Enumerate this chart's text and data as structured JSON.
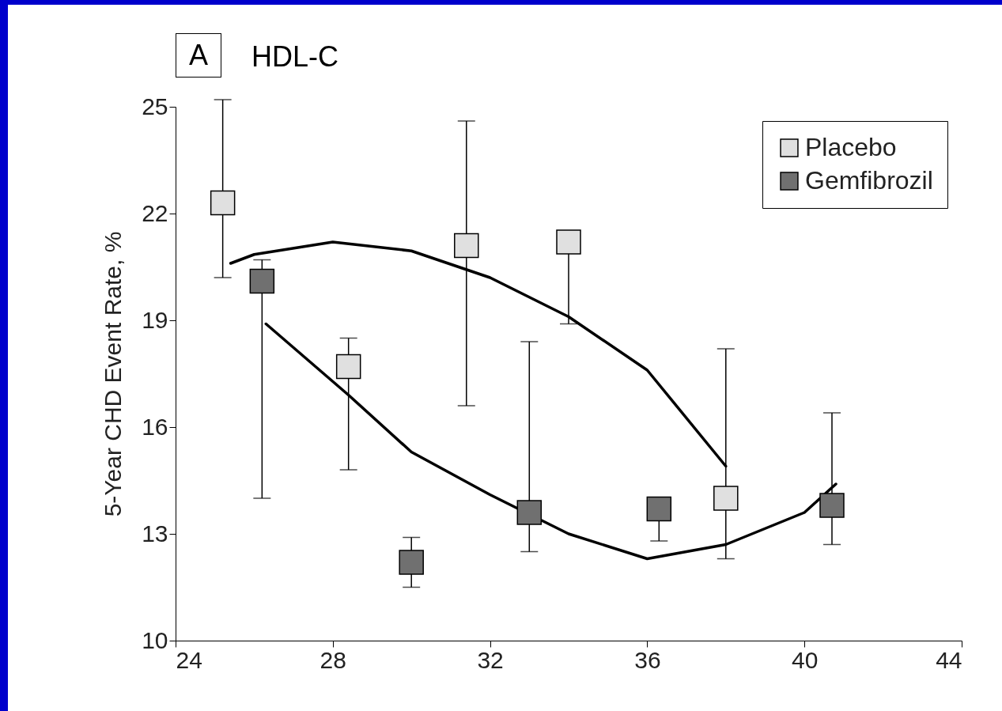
{
  "chart_data": {
    "type": "scatter",
    "title": "HDL-C",
    "ylabel": "5-Year CHD Event Rate, %",
    "annotations": [
      "A"
    ],
    "xlim": [
      24,
      44
    ],
    "xticks": [
      24,
      28,
      32,
      36,
      40,
      44
    ],
    "ylim": [
      10,
      25
    ],
    "yticks": [
      10,
      13,
      16,
      19,
      22,
      25
    ],
    "grid": false,
    "legend": "top right",
    "marker": "square",
    "series": [
      {
        "name": "Placebo",
        "color": "#e0e0e0",
        "x": [
          25.2,
          28.4,
          31.4,
          34.0,
          38.0
        ],
        "values": [
          22.3,
          17.7,
          21.1,
          21.2,
          14.0
        ],
        "errors": [
          [
            20.2,
            25.2
          ],
          [
            14.8,
            18.5
          ],
          [
            16.6,
            24.6
          ],
          [
            18.9,
            21.2
          ],
          [
            12.3,
            18.2
          ]
        ]
      },
      {
        "name": "Gemfibrozil",
        "color": "#707070",
        "x": [
          26.2,
          30.0,
          33.0,
          36.3,
          40.7
        ],
        "values": [
          20.1,
          12.2,
          13.6,
          13.7,
          13.8
        ],
        "errors": [
          [
            14.0,
            20.7
          ],
          [
            11.5,
            12.9
          ],
          [
            12.5,
            18.4
          ],
          [
            12.8,
            13.7
          ],
          [
            12.7,
            16.4
          ]
        ]
      },
      {
        "type": "line",
        "marker": "none",
        "color": "#000000",
        "x": [
          25.4,
          26,
          28,
          30,
          32,
          34,
          36,
          38
        ],
        "values": [
          20.6,
          20.85,
          21.2,
          20.95,
          20.2,
          19.1,
          17.6,
          14.9
        ]
      },
      {
        "type": "line",
        "marker": "none",
        "color": "#000000",
        "x": [
          26.3,
          28.4,
          30,
          32,
          34,
          36,
          38,
          40,
          40.8
        ],
        "values": [
          18.9,
          16.9,
          15.3,
          14.1,
          13.0,
          12.3,
          12.7,
          13.6,
          14.4
        ]
      }
    ]
  }
}
